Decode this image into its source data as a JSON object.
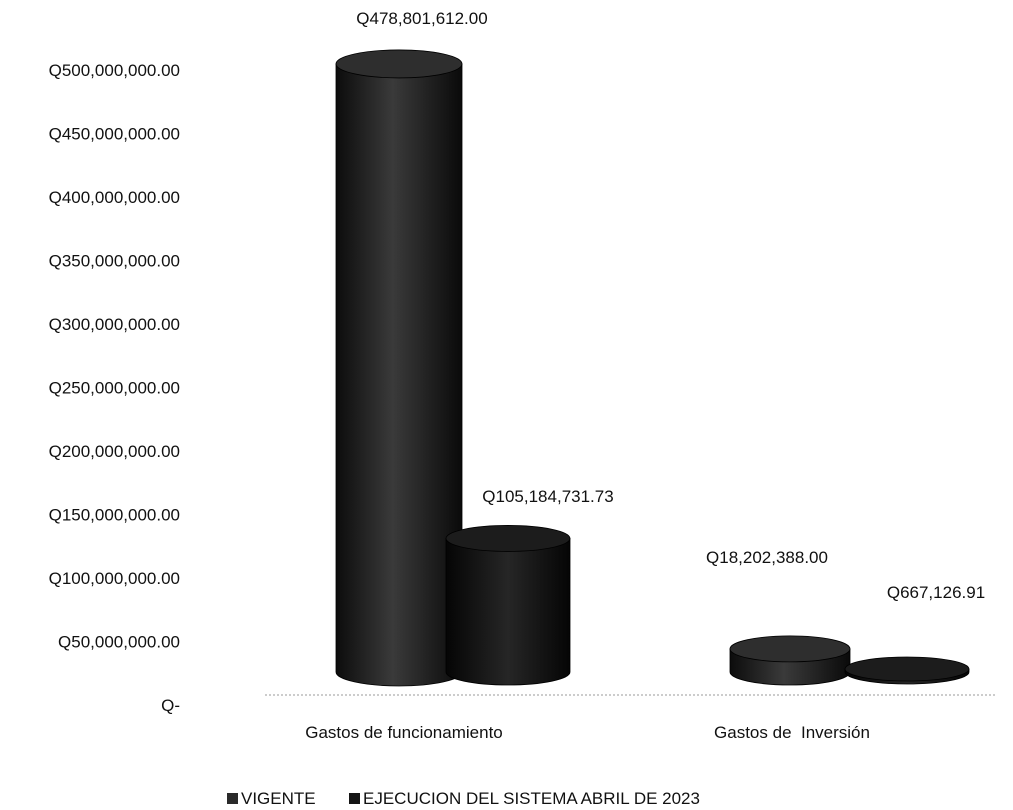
{
  "chart_data": {
    "type": "bar",
    "title": "",
    "xlabel": "",
    "ylabel": "",
    "categories": [
      "Gastos de funcionamiento",
      "Gastos de  Inversión"
    ],
    "series": [
      {
        "name": "VIGENTE",
        "values": [
          478801612.0,
          18202388.0
        ],
        "color": "#2a2a2a"
      },
      {
        "name": "EJECUCION DEL SISTEMA ABRIL DE 2023",
        "values": [
          105184731.73,
          667126.91
        ],
        "color": "#151515"
      }
    ],
    "data_labels": [
      [
        "Q478,801,612.00",
        "Q18,202,388.00"
      ],
      [
        "Q105,184,731.73",
        "Q667,126.91"
      ]
    ],
    "ylim": [
      0,
      500000000
    ],
    "y_ticks": [
      {
        "value": 0,
        "label": "Q-"
      },
      {
        "value": 50000000,
        "label": "Q50,000,000.00"
      },
      {
        "value": 100000000,
        "label": "Q100,000,000.00"
      },
      {
        "value": 150000000,
        "label": "Q150,000,000.00"
      },
      {
        "value": 200000000,
        "label": "Q200,000,000.00"
      },
      {
        "value": 250000000,
        "label": "Q250,000,000.00"
      },
      {
        "value": 300000000,
        "label": "Q300,000,000.00"
      },
      {
        "value": 350000000,
        "label": "Q350,000,000.00"
      },
      {
        "value": 400000000,
        "label": "Q400,000,000.00"
      },
      {
        "value": 450000000,
        "label": "Q450,000,000.00"
      },
      {
        "value": 500000000,
        "label": "Q500,000,000.00"
      }
    ],
    "grid": false,
    "legend_position": "bottom",
    "bar_shape": "cylinder"
  }
}
